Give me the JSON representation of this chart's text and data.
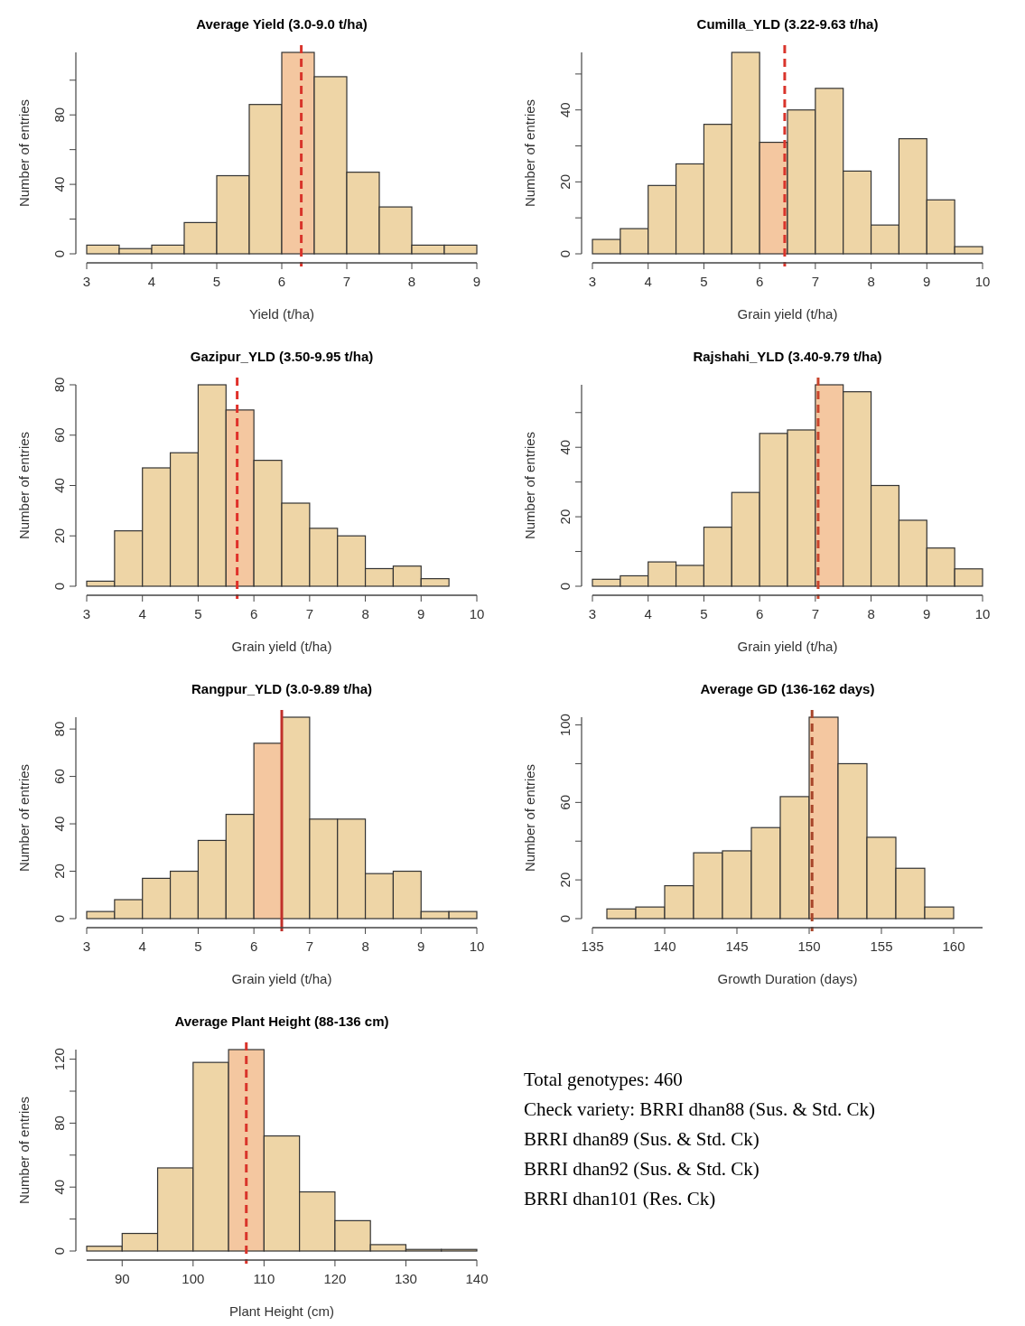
{
  "chart_data": [
    {
      "type": "histogram",
      "title": "Average Yield (3.0-9.0 t/ha)",
      "xlabel": "Yield (t/ha)",
      "ylabel": "Number of entries",
      "bins": [
        3,
        3.5,
        4,
        4.5,
        5,
        5.5,
        6,
        6.5,
        7,
        7.5,
        8,
        8.5,
        9
      ],
      "values": [
        5,
        3,
        5,
        18,
        45,
        86,
        116,
        102,
        47,
        27,
        5,
        5
      ],
      "colors": [
        "#eed5a6",
        "#eed5a6",
        "#eed5a6",
        "#eed5a6",
        "#eed5a6",
        "#eed5a6",
        "#f4c7a0",
        "#eed5a6",
        "#eed5a6",
        "#eed5a6",
        "#eed5a6",
        "#eed5a6"
      ],
      "xlim": [
        3,
        9
      ],
      "xticks": [
        3,
        4,
        5,
        6,
        7,
        8,
        9
      ],
      "ylim": [
        0,
        116
      ],
      "yticks": [
        0,
        {
          "value": 20,
          "label": null
        },
        40,
        {
          "value": 60,
          "label": null
        },
        80,
        {
          "value": 100,
          "label": null
        }
      ],
      "ref_lines": [
        {
          "axis": "x",
          "value": 6.3,
          "color": "#d9342b",
          "line_style": "dashed"
        }
      ]
    },
    {
      "type": "histogram",
      "title": "Cumilla_YLD (3.22-9.63 t/ha)",
      "xlabel": "Grain yield (t/ha)",
      "ylabel": "Number of entries",
      "bins": [
        3,
        3.5,
        4,
        4.5,
        5,
        5.5,
        6,
        6.5,
        7,
        7.5,
        8,
        8.5,
        9,
        9.5,
        10
      ],
      "values": [
        4,
        7,
        19,
        25,
        36,
        56,
        31,
        40,
        46,
        23,
        8,
        32,
        15,
        2
      ],
      "colors": [
        "#eed5a6",
        "#eed5a6",
        "#eed5a6",
        "#eed5a6",
        "#eed5a6",
        "#eed5a6",
        "#f4c7a0",
        "#eed5a6",
        "#eed5a6",
        "#eed5a6",
        "#eed5a6",
        "#eed5a6",
        "#eed5a6",
        "#eed5a6"
      ],
      "xlim": [
        3,
        10
      ],
      "xticks": [
        3,
        4,
        5,
        6,
        7,
        8,
        9,
        10
      ],
      "ylim": [
        0,
        56
      ],
      "yticks": [
        0,
        {
          "value": 10,
          "label": null
        },
        20,
        {
          "value": 30,
          "label": null
        },
        40,
        {
          "value": 50,
          "label": null
        }
      ],
      "ref_lines": [
        {
          "axis": "x",
          "value": 6.45,
          "color": "#d9342b",
          "line_style": "dashed"
        }
      ]
    },
    {
      "type": "histogram",
      "title": "Gazipur_YLD (3.50-9.95 t/ha)",
      "xlabel": "Grain yield (t/ha)",
      "ylabel": "Number of entries",
      "bins": [
        3,
        3.5,
        4,
        4.5,
        5,
        5.5,
        6,
        6.5,
        7,
        7.5,
        8,
        8.5,
        9,
        9.5,
        10
      ],
      "values": [
        2,
        22,
        47,
        53,
        80,
        70,
        50,
        33,
        23,
        20,
        7,
        8,
        3,
        0
      ],
      "colors": [
        "#eed5a6",
        "#eed5a6",
        "#eed5a6",
        "#eed5a6",
        "#eed5a6",
        "#f4c7a0",
        "#eed5a6",
        "#eed5a6",
        "#eed5a6",
        "#eed5a6",
        "#eed5a6",
        "#eed5a6",
        "#eed5a6",
        "#eed5a6"
      ],
      "xlim": [
        3,
        10
      ],
      "xticks": [
        3,
        4,
        5,
        6,
        7,
        8,
        9,
        10
      ],
      "ylim": [
        0,
        80
      ],
      "yticks": [
        0,
        20,
        40,
        60,
        80
      ],
      "ref_lines": [
        {
          "axis": "x",
          "value": 5.7,
          "color": "#e0302a",
          "line_style": "dashed"
        }
      ]
    },
    {
      "type": "histogram",
      "title": "Rajshahi_YLD (3.40-9.79 t/ha)",
      "xlabel": "Grain yield (t/ha)",
      "ylabel": "Number of entries",
      "bins": [
        3,
        3.5,
        4,
        4.5,
        5,
        5.5,
        6,
        6.5,
        7,
        7.5,
        8,
        8.5,
        9,
        9.5,
        10
      ],
      "values": [
        2,
        3,
        7,
        6,
        17,
        27,
        44,
        45,
        58,
        56,
        29,
        19,
        11,
        5
      ],
      "colors": [
        "#eed5a6",
        "#eed5a6",
        "#eed5a6",
        "#eed5a6",
        "#eed5a6",
        "#eed5a6",
        "#eed5a6",
        "#eed5a6",
        "#f4c7a0",
        "#eed5a6",
        "#eed5a6",
        "#eed5a6",
        "#eed5a6",
        "#eed5a6"
      ],
      "xlim": [
        3,
        10
      ],
      "xticks": [
        3,
        4,
        5,
        6,
        7,
        8,
        9,
        10
      ],
      "ylim": [
        0,
        58
      ],
      "yticks": [
        0,
        {
          "value": 10,
          "label": null
        },
        20,
        {
          "value": 30,
          "label": null
        },
        40,
        {
          "value": 50,
          "label": null
        }
      ],
      "ref_lines": [
        {
          "axis": "x",
          "value": 7.05,
          "color": "#c8452d",
          "line_style": "dashed"
        }
      ]
    },
    {
      "type": "histogram",
      "title": "Rangpur_YLD (3.0-9.89 t/ha)",
      "xlabel": "Grain yield (t/ha)",
      "ylabel": "Number of entries",
      "bins": [
        3,
        3.5,
        4,
        4.5,
        5,
        5.5,
        6,
        6.5,
        7,
        7.5,
        8,
        8.5,
        9,
        9.5,
        10
      ],
      "values": [
        3,
        8,
        17,
        20,
        33,
        44,
        74,
        85,
        42,
        42,
        19,
        20,
        3,
        3
      ],
      "colors": [
        "#eed5a6",
        "#eed5a6",
        "#eed5a6",
        "#eed5a6",
        "#eed5a6",
        "#eed5a6",
        "#f4c7a0",
        "#eed5a6",
        "#eed5a6",
        "#eed5a6",
        "#eed5a6",
        "#eed5a6",
        "#eed5a6",
        "#eed5a6"
      ],
      "xlim": [
        3,
        10
      ],
      "xticks": [
        3,
        4,
        5,
        6,
        7,
        8,
        9,
        10
      ],
      "ylim": [
        0,
        85
      ],
      "yticks": [
        0,
        20,
        40,
        60,
        80
      ],
      "ref_lines": [
        {
          "axis": "x",
          "value": 6.5,
          "color": "#c0302a",
          "line_style": "solid"
        }
      ]
    },
    {
      "type": "histogram",
      "title": "Average GD (136-162 days)",
      "xlabel": "Growth Duration (days)",
      "ylabel": "Number of entries",
      "bins": [
        136,
        138,
        140,
        142,
        144,
        146,
        148,
        150,
        152,
        154,
        156,
        158,
        160,
        162
      ],
      "values": [
        5,
        6,
        17,
        34,
        35,
        47,
        63,
        104,
        80,
        42,
        26,
        6,
        0
      ],
      "colors": [
        "#eed5a6",
        "#eed5a6",
        "#eed5a6",
        "#eed5a6",
        "#eed5a6",
        "#eed5a6",
        "#eed5a6",
        "#f4c7a0",
        "#eed5a6",
        "#eed5a6",
        "#eed5a6",
        "#eed5a6",
        "#eed5a6"
      ],
      "xlim": [
        135,
        162
      ],
      "xticks": [
        135,
        140,
        145,
        150,
        155,
        160
      ],
      "ylim": [
        0,
        104
      ],
      "yticks": [
        0,
        20,
        {
          "value": 40,
          "label": null
        },
        60,
        {
          "value": 80,
          "label": null
        },
        100
      ],
      "ref_lines": [
        {
          "axis": "x",
          "value": 150.2,
          "color": "#a8452a",
          "line_style": "dashed"
        }
      ]
    },
    {
      "type": "histogram",
      "title": "Average Plant Height (88-136 cm)",
      "xlabel": "Plant Height (cm)",
      "ylabel": "Number of entries",
      "bins": [
        85,
        90,
        95,
        100,
        105,
        110,
        115,
        120,
        125,
        130,
        135,
        140
      ],
      "values": [
        3,
        11,
        52,
        118,
        126,
        72,
        37,
        19,
        4,
        1,
        1
      ],
      "colors": [
        "#eed5a6",
        "#eed5a6",
        "#eed5a6",
        "#eed5a6",
        "#f4c7a0",
        "#eed5a6",
        "#eed5a6",
        "#eed5a6",
        "#eed5a6",
        "#eed5a6",
        "#eed5a6"
      ],
      "xlim": [
        85,
        140
      ],
      "xticks": [
        90,
        100,
        110,
        120,
        130,
        140
      ],
      "ylim": [
        0,
        126
      ],
      "yticks": [
        0,
        {
          "value": 20,
          "label": null
        },
        40,
        {
          "value": 60,
          "label": null
        },
        80,
        {
          "value": 100,
          "label": null
        },
        120
      ],
      "ref_lines": [
        {
          "axis": "x",
          "value": 107.5,
          "color": "#d9342b",
          "line_style": "dashed"
        }
      ]
    },
    {
      "type": "other",
      "annotations": [
        "Total genotypes: 460",
        "Check variety: BRRI dhan88 (Sus. & Std. Ck)",
        "BRRI dhan89 (Sus. & Std. Ck)",
        "BRRI dhan92 (Sus. & Std. Ck)",
        "BRRI dhan101 (Res. Ck)"
      ]
    }
  ]
}
